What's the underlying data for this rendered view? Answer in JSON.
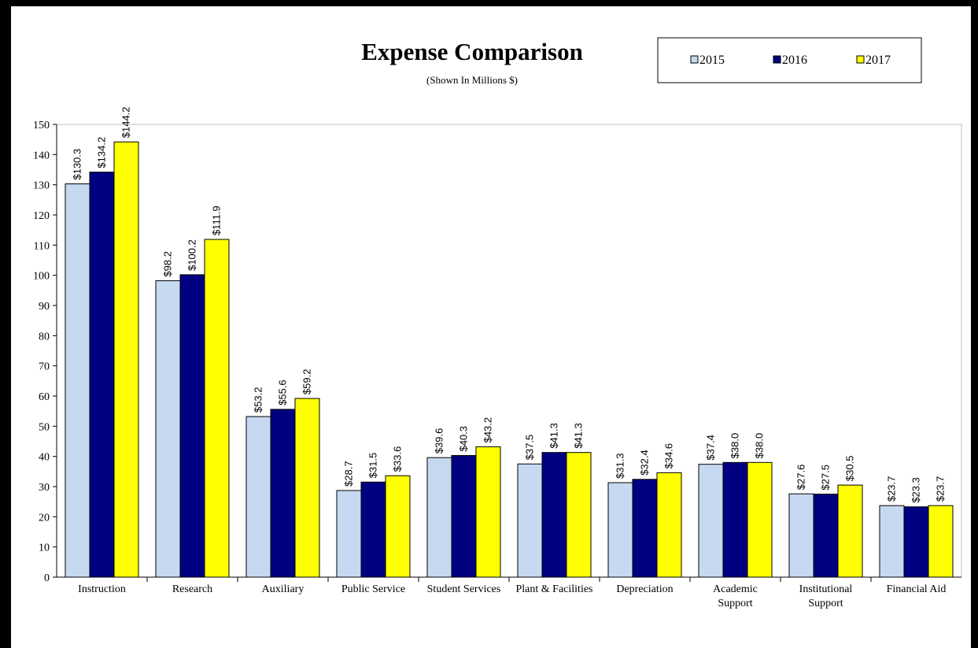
{
  "chart_data": {
    "type": "bar",
    "title": "Expense Comparison",
    "subtitle": "(Shown In Millions $)",
    "xlabel": "",
    "ylabel": "",
    "ylim": [
      0,
      150
    ],
    "ytick_step": 10,
    "grid": false,
    "legend_position": "top-right",
    "categories": [
      "Instruction",
      "Research",
      "Auxiliary",
      "Public Service",
      "Student Services",
      "Plant & Facilities",
      "Depreciation",
      "Academic Support",
      "Institutional Support",
      "Financial Aid"
    ],
    "category_lines": [
      [
        "Instruction"
      ],
      [
        "Research"
      ],
      [
        "Auxiliary"
      ],
      [
        "Public Service"
      ],
      [
        "Student Services"
      ],
      [
        "Plant & Facilities"
      ],
      [
        "Depreciation"
      ],
      [
        "Academic",
        "Support"
      ],
      [
        "Institutional",
        "Support"
      ],
      [
        "Financial Aid"
      ]
    ],
    "series": [
      {
        "name": "2015",
        "color": "#C6D9F0",
        "values": [
          130.3,
          98.2,
          53.2,
          28.7,
          39.6,
          37.5,
          31.3,
          37.4,
          27.6,
          23.7
        ],
        "labels": [
          "$130.3",
          "$98.2",
          "$53.2",
          "$28.7",
          "$39.6",
          "$37.5",
          "$31.3",
          "$37.4",
          "$27.6",
          "$23.7"
        ]
      },
      {
        "name": "2016",
        "color": "#000080",
        "values": [
          134.2,
          100.2,
          55.6,
          31.5,
          40.3,
          41.3,
          32.4,
          38.0,
          27.5,
          23.3
        ],
        "labels": [
          "$134.2",
          "$100.2",
          "$55.6",
          "$31.5",
          "$40.3",
          "$41.3",
          "$32.4",
          "$38.0",
          "$27.5",
          "$23.3"
        ]
      },
      {
        "name": "2017",
        "color": "#FFFF00",
        "values": [
          144.2,
          111.9,
          59.2,
          33.6,
          43.2,
          41.3,
          34.6,
          38.0,
          30.5,
          23.7
        ],
        "labels": [
          "$144.2",
          "$111.9",
          "$59.2",
          "$33.6",
          "$43.2",
          "$41.3",
          "$34.6",
          "$38.0",
          "$30.5",
          "$23.7"
        ]
      }
    ]
  }
}
